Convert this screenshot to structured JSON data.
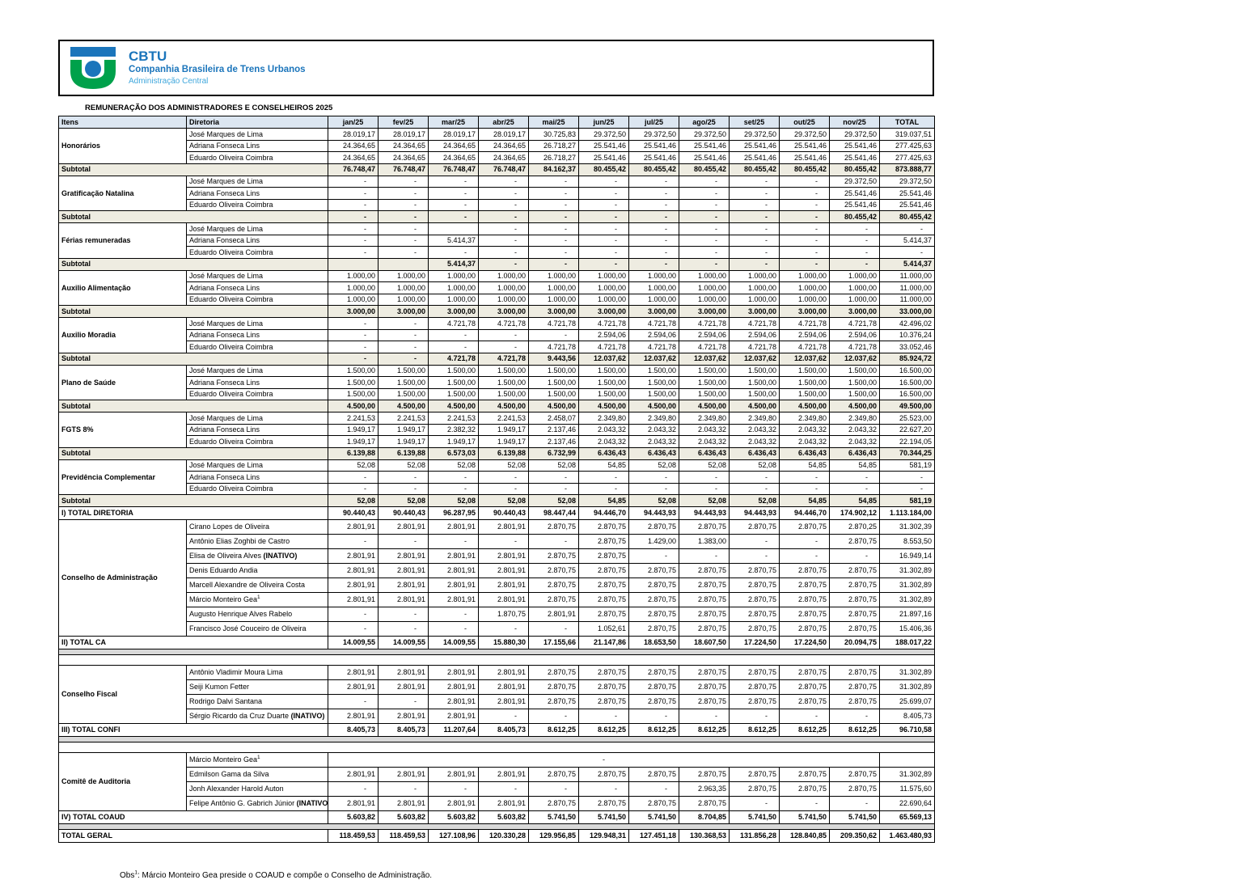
{
  "colors": {
    "brand_blue": "#1b75bb",
    "brand_light_blue": "#3fa7dc",
    "brand_green": "#00a14b",
    "table_header_bg": "#dce6f1",
    "subtotal_bg": "#eeece1",
    "separator_bg": "#d9d9d9"
  },
  "header": {
    "org_acronym": "CBTU",
    "org_name": "Companhia Brasileira de Trens Urbanos",
    "org_unit": "Administração Central",
    "title": "REMUNERAÇÃO DOS ADMINISTRADORES E CONSELHEIROS 2025"
  },
  "table": {
    "subtotal_label": "Subtotal",
    "columns": [
      "Itens",
      "Diretoria",
      "jan/25",
      "fev/25",
      "mar/25",
      "abr/25",
      "mai/25",
      "jun/25",
      "jul/25",
      "ago/25",
      "set/25",
      "out/25",
      "nov/25",
      "TOTAL"
    ],
    "rows": [
      {
        "t": "m",
        "item": "Honorários",
        "span": 3,
        "name": "José Marques de Lima",
        "v": [
          "28.019,17",
          "28.019,17",
          "28.019,17",
          "28.019,17",
          "30.725,83",
          "29.372,50",
          "29.372,50",
          "29.372,50",
          "29.372,50",
          "29.372,50",
          "29.372,50",
          "319.037,51"
        ]
      },
      {
        "t": "m",
        "name": "Adriana Fonseca Lins",
        "v": [
          "24.364,65",
          "24.364,65",
          "24.364,65",
          "24.364,65",
          "26.718,27",
          "25.541,46",
          "25.541,46",
          "25.541,46",
          "25.541,46",
          "25.541,46",
          "25.541,46",
          "277.425,63"
        ]
      },
      {
        "t": "m",
        "name": "Eduardo Oliveira Coimbra",
        "v": [
          "24.364,65",
          "24.364,65",
          "24.364,65",
          "24.364,65",
          "26.718,27",
          "25.541,46",
          "25.541,46",
          "25.541,46",
          "25.541,46",
          "25.541,46",
          "25.541,46",
          "277.425,63"
        ]
      },
      {
        "t": "sub",
        "v": [
          "76.748,47",
          "76.748,47",
          "76.748,47",
          "76.748,47",
          "84.162,37",
          "80.455,42",
          "80.455,42",
          "80.455,42",
          "80.455,42",
          "80.455,42",
          "80.455,42",
          "873.888,77"
        ]
      },
      {
        "t": "m",
        "item": "Gratificação Natalina",
        "span": 3,
        "name": "José Marques de Lima",
        "v": [
          "-",
          "-",
          "-",
          "-",
          "-",
          "-",
          "-",
          "-",
          "-",
          "-",
          "29.372,50",
          "29.372,50"
        ]
      },
      {
        "t": "m",
        "name": "Adriana Fonseca Lins",
        "v": [
          "-",
          "-",
          "-",
          "-",
          "-",
          "-",
          "-",
          "-",
          "-",
          "-",
          "25.541,46",
          "25.541,46"
        ]
      },
      {
        "t": "m",
        "name": "Eduardo Oliveira Coimbra",
        "v": [
          "-",
          "-",
          "-",
          "-",
          "-",
          "-",
          "-",
          "-",
          "-",
          "-",
          "25.541,46",
          "25.541,46"
        ]
      },
      {
        "t": "sub",
        "v": [
          "-",
          "-",
          "-",
          "-",
          "-",
          "-",
          "-",
          "-",
          "-",
          "-",
          "80.455,42",
          "80.455,42"
        ]
      },
      {
        "t": "m",
        "item": "Férias remuneradas",
        "span": 3,
        "name": "José Marques de Lima",
        "v": [
          "-",
          "-",
          "",
          "-",
          "-",
          "-",
          "-",
          "-",
          "-",
          "-",
          "-",
          "-"
        ]
      },
      {
        "t": "m",
        "name": "Adriana Fonseca Lins",
        "v": [
          "-",
          "-",
          "5.414,37",
          "-",
          "-",
          "-",
          "-",
          "-",
          "-",
          "-",
          "-",
          "5.414,37"
        ]
      },
      {
        "t": "m",
        "name": "Eduardo Oliveira Coimbra",
        "v": [
          "-",
          "-",
          "-",
          "-",
          "-",
          "-",
          "-",
          "-",
          "-",
          "-",
          "-",
          "-"
        ]
      },
      {
        "t": "sub",
        "v": [
          "",
          "",
          "5.414,37",
          "-",
          "-",
          "-",
          "-",
          "-",
          "-",
          "-",
          "-",
          "5.414,37"
        ]
      },
      {
        "t": "m",
        "item": "Auxilio Alimentação",
        "span": 3,
        "name": "José Marques de Lima",
        "v": [
          "1.000,00",
          "1.000,00",
          "1.000,00",
          "1.000,00",
          "1.000,00",
          "1.000,00",
          "1.000,00",
          "1.000,00",
          "1.000,00",
          "1.000,00",
          "1.000,00",
          "11.000,00"
        ]
      },
      {
        "t": "m",
        "name": "Adriana Fonseca Lins",
        "v": [
          "1.000,00",
          "1.000,00",
          "1.000,00",
          "1.000,00",
          "1.000,00",
          "1.000,00",
          "1.000,00",
          "1.000,00",
          "1.000,00",
          "1.000,00",
          "1.000,00",
          "11.000,00"
        ]
      },
      {
        "t": "m",
        "name": "Eduardo Oliveira Coimbra",
        "v": [
          "1.000,00",
          "1.000,00",
          "1.000,00",
          "1.000,00",
          "1.000,00",
          "1.000,00",
          "1.000,00",
          "1.000,00",
          "1.000,00",
          "1.000,00",
          "1.000,00",
          "11.000,00"
        ]
      },
      {
        "t": "sub",
        "v": [
          "3.000,00",
          "3.000,00",
          "3.000,00",
          "3.000,00",
          "3.000,00",
          "3.000,00",
          "3.000,00",
          "3.000,00",
          "3.000,00",
          "3.000,00",
          "3.000,00",
          "33.000,00"
        ]
      },
      {
        "t": "m",
        "item": "Auxilio Moradia",
        "span": 3,
        "name": "José Marques de Lima",
        "v": [
          "-",
          "-",
          "4.721,78",
          "4.721,78",
          "4.721,78",
          "4.721,78",
          "4.721,78",
          "4.721,78",
          "4.721,78",
          "4.721,78",
          "4.721,78",
          "42.496,02"
        ]
      },
      {
        "t": "m",
        "name": "Adriana Fonseca Lins",
        "v": [
          "-",
          "-",
          "-",
          "-",
          "-",
          "2.594,06",
          "2.594,06",
          "2.594,06",
          "2.594,06",
          "2.594,06",
          "2.594,06",
          "10.376,24"
        ]
      },
      {
        "t": "m",
        "name": "Eduardo Oliveira Coimbra",
        "v": [
          "-",
          "-",
          "-",
          "-",
          "4.721,78",
          "4.721,78",
          "4.721,78",
          "4.721,78",
          "4.721,78",
          "4.721,78",
          "4.721,78",
          "33.052,46"
        ]
      },
      {
        "t": "sub",
        "v": [
          "-",
          "-",
          "4.721,78",
          "4.721,78",
          "9.443,56",
          "12.037,62",
          "12.037,62",
          "12.037,62",
          "12.037,62",
          "12.037,62",
          "12.037,62",
          "85.924,72"
        ]
      },
      {
        "t": "m",
        "item": "Plano de Saúde",
        "span": 3,
        "name": "José Marques de Lima",
        "v": [
          "1.500,00",
          "1.500,00",
          "1.500,00",
          "1.500,00",
          "1.500,00",
          "1.500,00",
          "1.500,00",
          "1.500,00",
          "1.500,00",
          "1.500,00",
          "1.500,00",
          "16.500,00"
        ]
      },
      {
        "t": "m",
        "name": "Adriana Fonseca Lins",
        "v": [
          "1.500,00",
          "1.500,00",
          "1.500,00",
          "1.500,00",
          "1.500,00",
          "1.500,00",
          "1.500,00",
          "1.500,00",
          "1.500,00",
          "1.500,00",
          "1.500,00",
          "16.500,00"
        ]
      },
      {
        "t": "m",
        "name": "Eduardo Oliveira Coimbra",
        "v": [
          "1.500,00",
          "1.500,00",
          "1.500,00",
          "1.500,00",
          "1.500,00",
          "1.500,00",
          "1.500,00",
          "1.500,00",
          "1.500,00",
          "1.500,00",
          "1.500,00",
          "16.500,00"
        ]
      },
      {
        "t": "sub",
        "v": [
          "4.500,00",
          "4.500,00",
          "4.500,00",
          "4.500,00",
          "4.500,00",
          "4.500,00",
          "4.500,00",
          "4.500,00",
          "4.500,00",
          "4.500,00",
          "4.500,00",
          "49.500,00"
        ]
      },
      {
        "t": "m",
        "item": "FGTS 8%",
        "span": 3,
        "name": "José Marques de Lima",
        "v": [
          "2.241,53",
          "2.241,53",
          "2.241,53",
          "2.241,53",
          "2.458,07",
          "2.349,80",
          "2.349,80",
          "2.349,80",
          "2.349,80",
          "2.349,80",
          "2.349,80",
          "25.523,00"
        ]
      },
      {
        "t": "m",
        "name": "Adriana Fonseca Lins",
        "v": [
          "1.949,17",
          "1.949,17",
          "2.382,32",
          "1.949,17",
          "2.137,46",
          "2.043,32",
          "2.043,32",
          "2.043,32",
          "2.043,32",
          "2.043,32",
          "2.043,32",
          "22.627,20"
        ]
      },
      {
        "t": "m",
        "name": "Eduardo Oliveira Coimbra",
        "v": [
          "1.949,17",
          "1.949,17",
          "1.949,17",
          "1.949,17",
          "2.137,46",
          "2.043,32",
          "2.043,32",
          "2.043,32",
          "2.043,32",
          "2.043,32",
          "2.043,32",
          "22.194,05"
        ]
      },
      {
        "t": "sub",
        "v": [
          "6.139,88",
          "6.139,88",
          "6.573,03",
          "6.139,88",
          "6.732,99",
          "6.436,43",
          "6.436,43",
          "6.436,43",
          "6.436,43",
          "6.436,43",
          "6.436,43",
          "70.344,25"
        ]
      },
      {
        "t": "m",
        "item": "Previdência Complementar",
        "span": 3,
        "name": "José Marques de Lima",
        "v": [
          "52,08",
          "52,08",
          "52,08",
          "52,08",
          "52,08",
          "54,85",
          "52,08",
          "52,08",
          "52,08",
          "54,85",
          "54,85",
          "581,19"
        ]
      },
      {
        "t": "m",
        "name": "Adriana Fonseca Lins",
        "v": [
          "-",
          "-",
          "-",
          "-",
          "-",
          "-",
          "-",
          "-",
          "-",
          "-",
          "-",
          "-"
        ]
      },
      {
        "t": "m",
        "name": "Eduardo Oliveira Coimbra",
        "v": [
          "-",
          "-",
          "-",
          "-",
          "-",
          "-",
          "-",
          "-",
          "-",
          "-",
          "-",
          "-"
        ]
      },
      {
        "t": "sub",
        "v": [
          "52,08",
          "52,08",
          "52,08",
          "52,08",
          "52,08",
          "54,85",
          "52,08",
          "52,08",
          "52,08",
          "54,85",
          "54,85",
          "581,19"
        ]
      },
      {
        "t": "tot",
        "label": "I) TOTAL DIRETORIA",
        "v": [
          "90.440,43",
          "90.440,43",
          "96.287,95",
          "90.440,43",
          "98.447,44",
          "94.446,70",
          "94.443,93",
          "94.443,93",
          "94.443,93",
          "94.446,70",
          "174.902,12",
          "1.113.184,00"
        ]
      },
      {
        "t": "cm",
        "item": "Conselho de Administração",
        "span": 8,
        "name": "Cirano Lopes de Oliveira",
        "v": [
          "2.801,91",
          "2.801,91",
          "2.801,91",
          "2.801,91",
          "2.870,75",
          "2.870,75",
          "2.870,75",
          "2.870,75",
          "2.870,75",
          "2.870,75",
          "2.870,25",
          "31.302,39"
        ]
      },
      {
        "t": "cm",
        "name": "Antônio Elias Zoghbi de Castro",
        "v": [
          "-",
          "-",
          "-",
          "-",
          "-",
          "2.870,75",
          "1.429,00",
          "1.383,00",
          "-",
          "-",
          "2.870,75",
          "8.553,50"
        ]
      },
      {
        "t": "cm",
        "name": "Elisa de Oliveira Alves",
        "suffix": "(INATIVO)",
        "v": [
          "2.801,91",
          "2.801,91",
          "2.801,91",
          "2.801,91",
          "2.870,75",
          "2.870,75",
          "-",
          "-",
          "-",
          "-",
          "-",
          "16.949,14"
        ]
      },
      {
        "t": "cm",
        "name": "Denis Eduardo Andia",
        "v": [
          "2.801,91",
          "2.801,91",
          "2.801,91",
          "2.801,91",
          "2.870,75",
          "2.870,75",
          "2.870,75",
          "2.870,75",
          "2.870,75",
          "2.870,75",
          "2.870,75",
          "31.302,89"
        ]
      },
      {
        "t": "cm",
        "name": "Marcell Alexandre de Oliveira Costa",
        "v": [
          "2.801,91",
          "2.801,91",
          "2.801,91",
          "2.801,91",
          "2.870,75",
          "2.870,75",
          "2.870,75",
          "2.870,75",
          "2.870,75",
          "2.870,75",
          "2.870,75",
          "31.302,89"
        ]
      },
      {
        "t": "cm",
        "name": "Márcio Monteiro Gea",
        "sup": "1",
        "v": [
          "2.801,91",
          "2.801,91",
          "2.801,91",
          "2.801,91",
          "2.870,75",
          "2.870,75",
          "2.870,75",
          "2.870,75",
          "2.870,75",
          "2.870,75",
          "2.870,75",
          "31.302,89"
        ]
      },
      {
        "t": "cm",
        "name": "Augusto Henrique Alves Rabelo",
        "v": [
          "-",
          "-",
          "-",
          "1.870,75",
          "2.801,91",
          "2.870,75",
          "2.870,75",
          "2.870,75",
          "2.870,75",
          "2.870,75",
          "2.870,75",
          "21.897,16"
        ]
      },
      {
        "t": "cm",
        "name": "Francisco José Couceiro de Oliveira",
        "v": [
          "-",
          "-",
          "-",
          "-",
          "-",
          "1.052,61",
          "2.870,75",
          "2.870,75",
          "2.870,75",
          "2.870,75",
          "2.870,75",
          "15.406,36"
        ]
      },
      {
        "t": "tot",
        "label": "II) TOTAL CA",
        "v": [
          "14.009,55",
          "14.009,55",
          "14.009,55",
          "15.880,30",
          "17.155,66",
          "21.147,86",
          "18.653,50",
          "18.607,50",
          "17.224,50",
          "17.224,50",
          "20.094,75",
          "188.017,22"
        ]
      },
      {
        "t": "sep"
      },
      {
        "t": "gap"
      },
      {
        "t": "cm",
        "item": "Conselho Fiscal",
        "span": 4,
        "name": "Antônio Vladimir Moura Lima",
        "v": [
          "2.801,91",
          "2.801,91",
          "2.801,91",
          "2.801,91",
          "2.870,75",
          "2.870,75",
          "2.870,75",
          "2.870,75",
          "2.870,75",
          "2.870,75",
          "2.870,75",
          "31.302,89"
        ]
      },
      {
        "t": "cm",
        "name": "Seiji Kumon Fetter",
        "v": [
          "2.801,91",
          "2.801,91",
          "2.801,91",
          "2.801,91",
          "2.870,75",
          "2.870,75",
          "2.870,75",
          "2.870,75",
          "2.870,75",
          "2.870,75",
          "2.870,75",
          "31.302,89"
        ]
      },
      {
        "t": "cm",
        "name": "Rodrigo Dalvi Santana",
        "v": [
          "-",
          "-",
          "2.801,91",
          "2.801,91",
          "2.870,75",
          "2.870,75",
          "2.870,75",
          "2.870,75",
          "2.870,75",
          "2.870,75",
          "2.870,75",
          "25.699,07"
        ]
      },
      {
        "t": "cm",
        "name": "Sérgio Ricardo da Cruz Duarte",
        "suffix": "(INATIVO)",
        "v": [
          "2.801,91",
          "2.801,91",
          "2.801,91",
          "-",
          "-",
          "-",
          "-",
          "-",
          "-",
          "-",
          "-",
          "8.405,73"
        ]
      },
      {
        "t": "tot",
        "label": "III) TOTAL CONFI",
        "v": [
          "8.405,73",
          "8.405,73",
          "11.207,64",
          "8.405,73",
          "8.612,25",
          "8.612,25",
          "8.612,25",
          "8.612,25",
          "8.612,25",
          "8.612,25",
          "8.612,25",
          "96.710,58"
        ]
      },
      {
        "t": "sep"
      },
      {
        "t": "gap"
      },
      {
        "t": "cm",
        "item": "Comitê de Auditoria",
        "span": 4,
        "name": "Márcio Monteiro Gea",
        "sup": "1",
        "merged": "-"
      },
      {
        "t": "cm",
        "name": "Edmilson Gama da Silva",
        "v": [
          "2.801,91",
          "2.801,91",
          "2.801,91",
          "2.801,91",
          "2.870,75",
          "2.870,75",
          "2.870,75",
          "2.870,75",
          "2.870,75",
          "2.870,75",
          "2.870,75",
          "31.302,89"
        ]
      },
      {
        "t": "cm",
        "name": "Jonh Alexander Harold Auton",
        "v": [
          "-",
          "-",
          "-",
          "-",
          "-",
          "-",
          "-",
          "2.963,35",
          "2.870,75",
          "2.870,75",
          "2.870,75",
          "11.575,60"
        ]
      },
      {
        "t": "cm",
        "name": "Felipe Antônio G. Gabrich Júnior",
        "suffix": "(INATIVO)",
        "v": [
          "2.801,91",
          "2.801,91",
          "2.801,91",
          "2.801,91",
          "2.870,75",
          "2.870,75",
          "2.870,75",
          "2.870,75",
          "-",
          "-",
          "-",
          "22.690,64"
        ]
      },
      {
        "t": "tot",
        "label": "IV) TOTAL COAUD",
        "v": [
          "5.603,82",
          "5.603,82",
          "5.603,82",
          "5.603,82",
          "5.741,50",
          "5.741,50",
          "5.741,50",
          "8.704,85",
          "5.741,50",
          "5.741,50",
          "5.741,50",
          "65.569,13"
        ]
      },
      {
        "t": "sep"
      },
      {
        "t": "tot",
        "label": "TOTAL GERAL",
        "v": [
          "118.459,53",
          "118.459,53",
          "127.108,96",
          "120.330,28",
          "129.956,85",
          "129.948,31",
          "127.451,18",
          "130.368,53",
          "131.856,28",
          "128.840,85",
          "209.350,62",
          "1.463.480,93"
        ]
      }
    ]
  },
  "footnote": {
    "prefix": "Obs",
    "sup": "1",
    "text": ": Márcio Monteiro Gea preside o COAUD e compõe o Conselho de Administração."
  }
}
